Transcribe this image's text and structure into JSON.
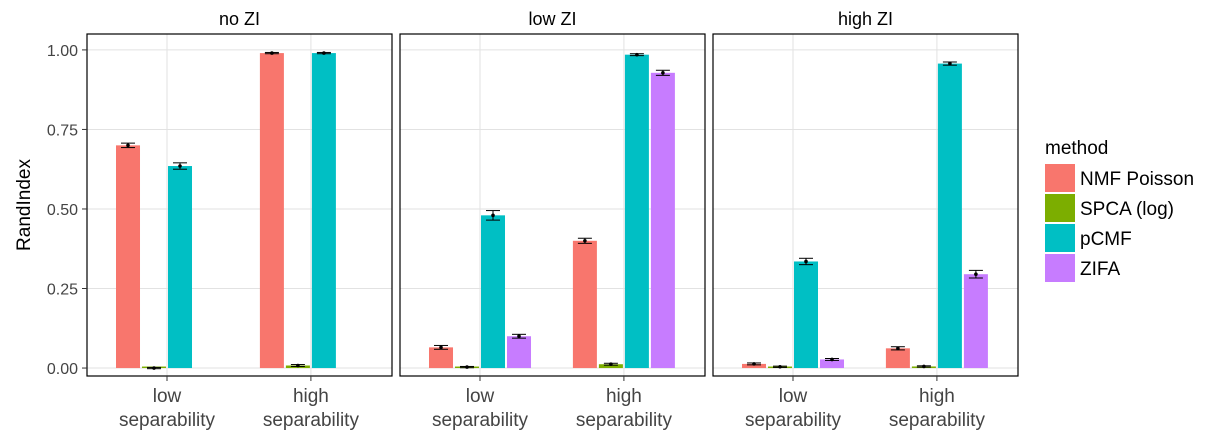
{
  "chart_data": {
    "type": "bar",
    "ylabel": "RandIndex",
    "xlabel": "",
    "ylim": [
      -0.025,
      1.05
    ],
    "yticks": [
      "0.00",
      "0.25",
      "0.50",
      "0.75",
      "1.00"
    ],
    "ytick_values": [
      0,
      0.25,
      0.5,
      0.75,
      1.0
    ],
    "grid": true,
    "categories": [
      [
        "low",
        "separability"
      ],
      [
        "high",
        "separability"
      ]
    ],
    "legend": {
      "title": "method",
      "placement": "right",
      "entries": [
        {
          "name": "NMF Poisson",
          "color": "#F8766D"
        },
        {
          "name": "SPCA (log)",
          "color": "#7CAE00"
        },
        {
          "name": "pCMF",
          "color": "#00BFC4"
        },
        {
          "name": "ZIFA",
          "color": "#C77CFF"
        }
      ]
    },
    "panels": [
      {
        "title": "no ZI",
        "groups": [
          {
            "values": [
              0.7,
              0.0,
              0.635,
              null
            ],
            "errors": [
              0.007,
              0.002,
              0.01,
              null
            ]
          },
          {
            "values": [
              0.99,
              0.008,
              0.99,
              null
            ],
            "errors": [
              0.002,
              0.003,
              0.002,
              null
            ]
          }
        ]
      },
      {
        "title": "low ZI",
        "groups": [
          {
            "values": [
              0.065,
              0.003,
              0.48,
              0.1
            ],
            "errors": [
              0.006,
              0.002,
              0.015,
              0.006
            ]
          },
          {
            "values": [
              0.4,
              0.012,
              0.985,
              0.928
            ],
            "errors": [
              0.008,
              0.003,
              0.003,
              0.008
            ]
          }
        ]
      },
      {
        "title": "high ZI",
        "groups": [
          {
            "values": [
              0.013,
              0.004,
              0.335,
              0.027
            ],
            "errors": [
              0.003,
              0.002,
              0.01,
              0.003
            ]
          },
          {
            "values": [
              0.062,
              0.005,
              0.957,
              0.295
            ],
            "errors": [
              0.005,
              0.002,
              0.005,
              0.012
            ]
          }
        ]
      }
    ]
  }
}
